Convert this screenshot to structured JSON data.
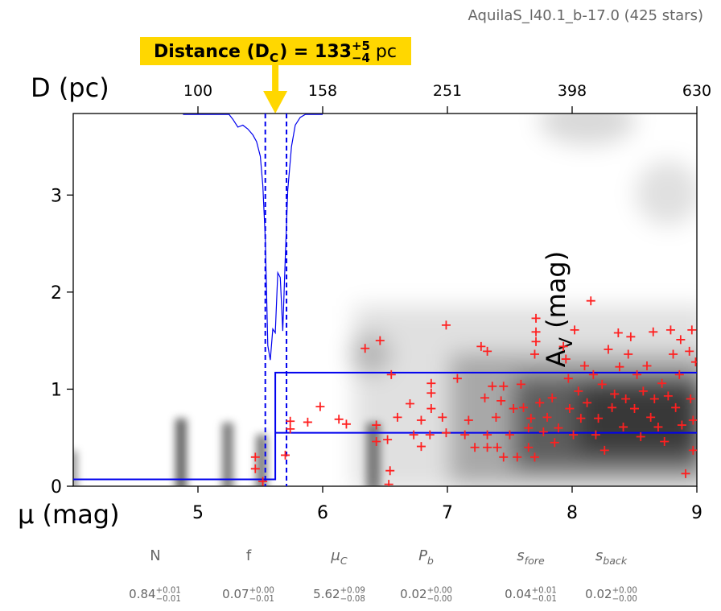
{
  "chart_data": {
    "type": "scatter",
    "title": "AquilaS_l40.1_b-17.0 (425 stars)",
    "annotation": {
      "text": "Distance (D",
      "sub": "C",
      "eq": ") = 133",
      "upper": "+5",
      "lower": "−4",
      "unit": " pc"
    },
    "xlabel": "μ (mag)",
    "ylabel": {
      "text": "A",
      "sub": "V",
      "unit": " (mag)"
    },
    "x2label": "D (pc)",
    "xlim": [
      4,
      9
    ],
    "ylim": [
      0,
      3.84
    ],
    "xticks": [
      5,
      6,
      7,
      8,
      9
    ],
    "yticks": [
      0,
      1,
      2,
      3
    ],
    "x2ticks": [
      {
        "value": 5,
        "label": "100"
      },
      {
        "value": 6,
        "label": "158"
      },
      {
        "value": 7,
        "label": "251"
      },
      {
        "value": 8,
        "label": "398"
      },
      {
        "value": 9,
        "label": "630"
      }
    ],
    "points": {
      "color": "#ff2020",
      "x": [
        5.46,
        5.46,
        5.52,
        5.7,
        5.74,
        5.74,
        5.88,
        5.98,
        6.13,
        6.19,
        6.34,
        6.46,
        6.43,
        6.43,
        6.52,
        6.55,
        6.54,
        6.53,
        6.6,
        6.7,
        6.73,
        6.79,
        6.79,
        6.87,
        6.87,
        6.87,
        6.86,
        6.96,
        6.99,
        6.99,
        7.08,
        7.14,
        7.17,
        7.22,
        7.27,
        7.32,
        7.3,
        7.32,
        7.32,
        7.36,
        7.39,
        7.4,
        7.43,
        7.45,
        7.45,
        7.5,
        7.53,
        7.56,
        7.59,
        7.61,
        7.65,
        7.65,
        7.67,
        7.7,
        7.71,
        7.71,
        7.71,
        7.7,
        7.74,
        7.77,
        7.8,
        7.84,
        7.86,
        7.89,
        7.93,
        7.95,
        7.97,
        7.98,
        8.02,
        8.01,
        8.05,
        8.07,
        8.1,
        8.12,
        8.15,
        8.17,
        8.19,
        8.21,
        8.24,
        8.26,
        8.29,
        8.32,
        8.34,
        8.37,
        8.38,
        8.41,
        8.43,
        8.45,
        8.47,
        8.5,
        8.52,
        8.55,
        8.57,
        8.6,
        8.63,
        8.65,
        8.66,
        8.69,
        8.72,
        8.74,
        8.77,
        8.79,
        8.81,
        8.83,
        8.86,
        8.87,
        8.88,
        8.91,
        8.94,
        8.95,
        8.96,
        8.97,
        8.97,
        8.99
      ],
      "y": [
        0.3,
        0.18,
        0.05,
        0.32,
        0.67,
        0.59,
        0.66,
        0.82,
        0.69,
        0.64,
        1.42,
        1.5,
        0.63,
        0.46,
        0.48,
        1.15,
        0.16,
        0.02,
        0.71,
        0.85,
        0.53,
        0.68,
        0.41,
        1.06,
        0.96,
        0.8,
        0.53,
        0.71,
        1.66,
        0.55,
        1.11,
        0.53,
        0.68,
        0.4,
        1.44,
        1.39,
        0.91,
        0.53,
        0.4,
        1.03,
        0.71,
        0.4,
        0.88,
        1.03,
        0.3,
        0.53,
        0.8,
        0.3,
        1.05,
        0.81,
        0.6,
        0.4,
        0.7,
        1.36,
        1.73,
        1.59,
        1.49,
        0.3,
        0.86,
        0.56,
        0.71,
        0.91,
        0.45,
        0.6,
        1.44,
        1.31,
        1.11,
        0.8,
        1.61,
        0.53,
        0.98,
        0.7,
        1.24,
        0.86,
        1.91,
        1.15,
        0.53,
        0.7,
        1.05,
        0.37,
        1.41,
        0.81,
        0.95,
        1.58,
        1.23,
        0.61,
        0.9,
        1.36,
        1.54,
        0.8,
        1.15,
        0.51,
        0.98,
        1.24,
        0.71,
        1.59,
        0.9,
        0.61,
        1.06,
        0.46,
        0.93,
        1.61,
        1.36,
        0.81,
        1.15,
        1.51,
        0.63,
        0.13,
        1.39,
        0.9,
        1.61,
        0.37,
        0.68,
        1.28
      ]
    },
    "lines": [
      {
        "color": "#0000ee",
        "x": [
          4,
          5.62,
          5.62,
          9
        ],
        "y": [
          0.07,
          0.07,
          1.17,
          1.17
        ]
      },
      {
        "color": "#0000ee",
        "x": [
          5.62,
          9
        ],
        "y": [
          0.55,
          0.55
        ]
      },
      {
        "color": "#0000ee",
        "x": [
          4.88,
          5.1,
          5.25,
          5.28,
          5.32,
          5.36,
          5.4,
          5.44,
          5.47,
          5.5,
          5.52,
          5.54,
          5.56,
          5.58,
          5.6,
          5.62,
          5.64,
          5.66,
          5.68,
          5.7,
          5.72,
          5.75,
          5.78,
          5.82,
          5.86,
          6.0
        ],
        "y": [
          3.83,
          3.83,
          3.83,
          3.78,
          3.7,
          3.72,
          3.68,
          3.62,
          3.55,
          3.4,
          3.1,
          2.55,
          1.45,
          1.3,
          1.62,
          1.58,
          2.2,
          2.15,
          1.6,
          2.35,
          3.05,
          3.5,
          3.72,
          3.8,
          3.83,
          3.83
        ]
      }
    ],
    "vlines": {
      "color": "#0000ee",
      "x": [
        5.54,
        5.71
      ]
    },
    "parameters": [
      {
        "name": "N",
        "value": 0.84,
        "plus": "+0.01",
        "minus": "−0.01"
      },
      {
        "name": "f",
        "value": 0.07,
        "plus": "+0.00",
        "minus": "−0.01"
      },
      {
        "name": "μ",
        "sub": "C",
        "value": 5.62,
        "plus": "+0.09",
        "minus": "−0.08"
      },
      {
        "name": "P",
        "sub": "b",
        "value": 0.02,
        "plus": "+0.00",
        "minus": "−0.00"
      },
      {
        "name": "s",
        "sub": "fore",
        "value": 0.04,
        "plus": "+0.01",
        "minus": "−0.01"
      },
      {
        "name": "s",
        "sub": "back",
        "value": 0.02,
        "plus": "+0.00",
        "minus": "−0.00"
      }
    ]
  }
}
